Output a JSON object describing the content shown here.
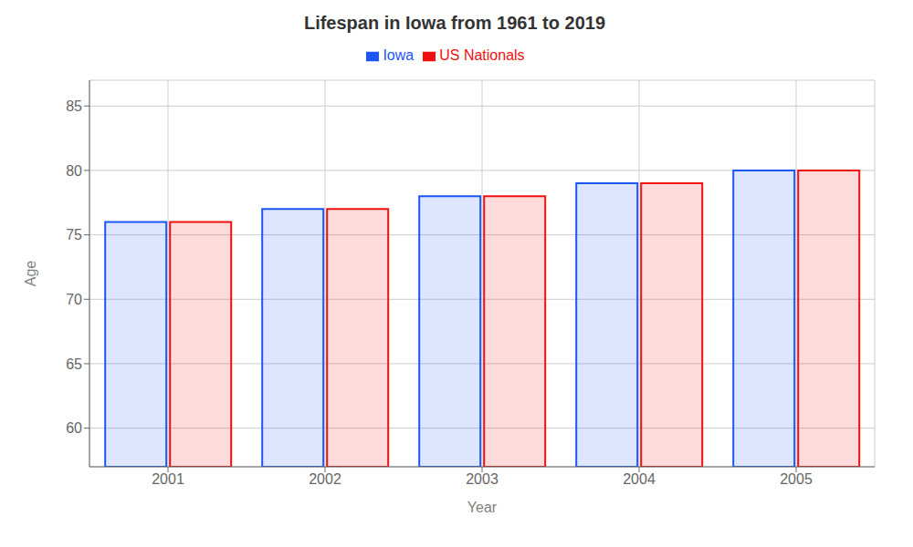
{
  "chart_data": {
    "type": "bar",
    "title": "Lifespan in Iowa from 1961 to 2019",
    "xlabel": "Year",
    "ylabel": "Age",
    "categories": [
      "2001",
      "2002",
      "2003",
      "2004",
      "2005"
    ],
    "series": [
      {
        "name": "Iowa",
        "color": "#1a56f5",
        "values": [
          76,
          77,
          78,
          79,
          80
        ]
      },
      {
        "name": "US Nationals",
        "color": "#f01010",
        "values": [
          76,
          77,
          78,
          79,
          80
        ]
      }
    ],
    "ylim": [
      57,
      87
    ],
    "yticks": [
      60,
      65,
      70,
      75,
      80,
      85
    ],
    "grid": true,
    "legend": "top"
  }
}
